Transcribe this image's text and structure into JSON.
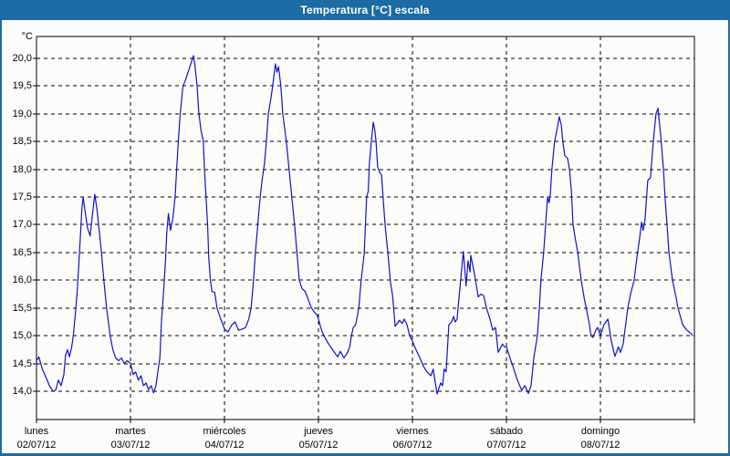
{
  "window": {
    "title": "Temperatura [°C] escala"
  },
  "colors": {
    "titlebar_bg": "#1D6BA4",
    "title_text": "#FFFFFF",
    "window_border": "#1D6BA4",
    "plot_background": "#FCFDFB",
    "plot_border": "#000000",
    "grid": "#000000",
    "line": "#1010CC"
  },
  "chart_data": {
    "type": "line",
    "title": "Temperatura [°C] escala",
    "y_axis": {
      "unit": "°C",
      "tick_labels": [
        "20,0",
        "19,5",
        "19,0",
        "18,5",
        "18,0",
        "17,5",
        "17,0",
        "16,5",
        "16,0",
        "15,5",
        "15,0",
        "14,5",
        "14,0"
      ],
      "tick_values": [
        20.0,
        19.5,
        19.0,
        18.5,
        18.0,
        17.5,
        17.0,
        16.5,
        16.0,
        15.5,
        15.0,
        14.5,
        14.0
      ],
      "visible_range": [
        13.49,
        20.39
      ],
      "grid": "dashed"
    },
    "x_axis": {
      "days": [
        {
          "name": "lunes",
          "date": "02/07/12"
        },
        {
          "name": "martes",
          "date": "03/07/12"
        },
        {
          "name": "miércoles",
          "date": "04/07/12"
        },
        {
          "name": "jueves",
          "date": "05/07/12"
        },
        {
          "name": "viernes",
          "date": "06/07/12"
        },
        {
          "name": "sábado",
          "date": "07/07/12"
        },
        {
          "name": "domingo",
          "date": "08/07/12"
        }
      ],
      "hours_span": 168,
      "grid": "dashed"
    },
    "legend": null,
    "series": [
      {
        "name": "Temperatura",
        "color": "#1010CC",
        "points_hour_temp": [
          [
            0,
            14.55
          ],
          [
            0.6,
            14.62
          ],
          [
            1.5,
            14.4
          ],
          [
            2.3,
            14.27
          ],
          [
            3.3,
            14.1
          ],
          [
            4.2,
            14.0
          ],
          [
            4.9,
            14.02
          ],
          [
            5.6,
            14.2
          ],
          [
            6.3,
            14.1
          ],
          [
            7,
            14.3
          ],
          [
            7.4,
            14.65
          ],
          [
            7.9,
            14.75
          ],
          [
            8.4,
            14.62
          ],
          [
            9,
            14.8
          ],
          [
            9.4,
            15.0
          ],
          [
            10,
            15.45
          ],
          [
            10.4,
            15.8
          ],
          [
            10.8,
            16.3
          ],
          [
            11.2,
            16.8
          ],
          [
            11.6,
            17.3
          ],
          [
            11.9,
            17.5
          ],
          [
            12.4,
            17.25
          ],
          [
            13,
            16.95
          ],
          [
            13.7,
            16.8
          ],
          [
            14.3,
            17.2
          ],
          [
            14.9,
            17.55
          ],
          [
            15.5,
            17.25
          ],
          [
            16,
            16.9
          ],
          [
            16.6,
            16.5
          ],
          [
            17.2,
            16.0
          ],
          [
            17.9,
            15.5
          ],
          [
            18.8,
            15.0
          ],
          [
            19.5,
            14.75
          ],
          [
            20.2,
            14.6
          ],
          [
            21,
            14.55
          ],
          [
            21.7,
            14.6
          ],
          [
            22.4,
            14.5
          ],
          [
            23.2,
            14.55
          ],
          [
            24,
            14.5
          ],
          [
            24.7,
            14.3
          ],
          [
            25.3,
            14.35
          ],
          [
            26,
            14.2
          ],
          [
            26.7,
            14.28
          ],
          [
            27.3,
            14.1
          ],
          [
            28,
            14.15
          ],
          [
            28.6,
            14.03
          ],
          [
            29.3,
            14.1
          ],
          [
            29.9,
            13.97
          ],
          [
            30.5,
            14.1
          ],
          [
            31,
            14.35
          ],
          [
            31.5,
            14.6
          ],
          [
            31.9,
            15.25
          ],
          [
            32.4,
            15.75
          ],
          [
            32.9,
            16.3
          ],
          [
            33.3,
            16.9
          ],
          [
            33.7,
            17.2
          ],
          [
            34.2,
            16.9
          ],
          [
            34.8,
            17.1
          ],
          [
            35.4,
            17.5
          ],
          [
            35.8,
            18.0
          ],
          [
            36.2,
            18.5
          ],
          [
            36.7,
            19.0
          ],
          [
            37.4,
            19.5
          ],
          [
            38,
            19.6
          ],
          [
            38.7,
            19.75
          ],
          [
            39.4,
            19.9
          ],
          [
            40.1,
            20.05
          ],
          [
            40.5,
            19.85
          ],
          [
            41,
            19.5
          ],
          [
            41.4,
            19.05
          ],
          [
            42,
            18.7
          ],
          [
            42.6,
            18.5
          ],
          [
            42.9,
            18.0
          ],
          [
            43.3,
            17.5
          ],
          [
            43.7,
            17.0
          ],
          [
            44,
            16.4
          ],
          [
            44.4,
            16.0
          ],
          [
            44.8,
            15.8
          ],
          [
            45.5,
            15.78
          ],
          [
            46.1,
            15.5
          ],
          [
            46.9,
            15.33
          ],
          [
            47.6,
            15.2
          ],
          [
            48,
            15.12
          ],
          [
            48.9,
            15.07
          ],
          [
            49.9,
            15.2
          ],
          [
            50.7,
            15.25
          ],
          [
            51.6,
            15.1
          ],
          [
            52.5,
            15.12
          ],
          [
            53.4,
            15.15
          ],
          [
            54.2,
            15.3
          ],
          [
            54.8,
            15.5
          ],
          [
            55.4,
            16.0
          ],
          [
            55.9,
            16.5
          ],
          [
            56.5,
            17.0
          ],
          [
            57.1,
            17.5
          ],
          [
            57.7,
            17.85
          ],
          [
            58.2,
            18.1
          ],
          [
            58.7,
            18.5
          ],
          [
            59.2,
            19.0
          ],
          [
            59.9,
            19.3
          ],
          [
            60.3,
            19.5
          ],
          [
            61,
            19.9
          ],
          [
            61.4,
            19.75
          ],
          [
            61.8,
            19.85
          ],
          [
            62.4,
            19.5
          ],
          [
            62.9,
            19.0
          ],
          [
            63.8,
            18.5
          ],
          [
            64.5,
            18.0
          ],
          [
            65.2,
            17.5
          ],
          [
            65.9,
            17.0
          ],
          [
            66.5,
            16.5
          ],
          [
            67.1,
            16.0
          ],
          [
            67.8,
            15.85
          ],
          [
            68.6,
            15.8
          ],
          [
            69.4,
            15.65
          ],
          [
            70.2,
            15.5
          ],
          [
            71,
            15.42
          ],
          [
            71.6,
            15.38
          ],
          [
            72,
            15.3
          ],
          [
            72.8,
            15.1
          ],
          [
            73.4,
            15.0
          ],
          [
            74.6,
            14.85
          ],
          [
            75.8,
            14.73
          ],
          [
            76.9,
            14.62
          ],
          [
            77.6,
            14.72
          ],
          [
            78.5,
            14.6
          ],
          [
            79.3,
            14.68
          ],
          [
            80,
            14.8
          ],
          [
            80.4,
            15.0
          ],
          [
            80.9,
            15.15
          ],
          [
            81.5,
            15.2
          ],
          [
            82.3,
            15.5
          ],
          [
            82.9,
            16.0
          ],
          [
            83.4,
            16.3
          ],
          [
            83.7,
            16.5
          ],
          [
            84,
            17.0
          ],
          [
            84.3,
            17.5
          ],
          [
            84.7,
            17.6
          ],
          [
            85,
            18.1
          ],
          [
            85.5,
            18.5
          ],
          [
            86,
            18.85
          ],
          [
            86.4,
            18.7
          ],
          [
            86.7,
            18.5
          ],
          [
            87.1,
            18.05
          ],
          [
            87.6,
            17.95
          ],
          [
            88.1,
            17.9
          ],
          [
            88.5,
            17.5
          ],
          [
            89,
            17.0
          ],
          [
            89.7,
            16.5
          ],
          [
            90.4,
            15.95
          ],
          [
            90.9,
            15.74
          ],
          [
            91.6,
            15.17
          ],
          [
            92.7,
            15.28
          ],
          [
            93.4,
            15.22
          ],
          [
            93.9,
            15.3
          ],
          [
            94.6,
            15.2
          ],
          [
            95.3,
            15.0
          ],
          [
            96,
            14.9
          ],
          [
            96.9,
            14.75
          ],
          [
            97.9,
            14.6
          ],
          [
            98.8,
            14.45
          ],
          [
            99.7,
            14.35
          ],
          [
            100.7,
            14.28
          ],
          [
            101.3,
            14.4
          ],
          [
            102.3,
            13.95
          ],
          [
            103.2,
            14.15
          ],
          [
            103.7,
            14.1
          ],
          [
            104.1,
            14.4
          ],
          [
            104.6,
            14.35
          ],
          [
            105.3,
            15.2
          ],
          [
            106,
            15.25
          ],
          [
            106.5,
            15.35
          ],
          [
            106.9,
            15.25
          ],
          [
            107.4,
            15.3
          ],
          [
            108.3,
            16.0
          ],
          [
            109,
            16.52
          ],
          [
            109.7,
            15.9
          ],
          [
            110.2,
            16.35
          ],
          [
            110.7,
            16.15
          ],
          [
            110.9,
            16.45
          ],
          [
            111.6,
            16.2
          ],
          [
            112.1,
            16.0
          ],
          [
            112.8,
            15.7
          ],
          [
            113.5,
            15.75
          ],
          [
            114.2,
            15.72
          ],
          [
            114.9,
            15.5
          ],
          [
            115.8,
            15.3
          ],
          [
            116.5,
            15.1
          ],
          [
            117.2,
            15.15
          ],
          [
            117.9,
            14.7
          ],
          [
            119,
            14.85
          ],
          [
            119.5,
            14.8
          ],
          [
            120,
            14.8
          ],
          [
            120.9,
            14.6
          ],
          [
            121.8,
            14.42
          ],
          [
            122.8,
            14.2
          ],
          [
            123.9,
            14.02
          ],
          [
            124.7,
            14.1
          ],
          [
            125.6,
            13.96
          ],
          [
            126.3,
            14.1
          ],
          [
            127,
            14.6
          ],
          [
            127.9,
            15.0
          ],
          [
            128.4,
            15.5
          ],
          [
            128.8,
            16.0
          ],
          [
            129.5,
            16.5
          ],
          [
            130,
            17.0
          ],
          [
            130.5,
            17.5
          ],
          [
            130.9,
            17.4
          ],
          [
            131.2,
            17.55
          ],
          [
            131.6,
            18.0
          ],
          [
            132.3,
            18.5
          ],
          [
            133,
            18.75
          ],
          [
            133.5,
            18.95
          ],
          [
            134,
            18.8
          ],
          [
            134.4,
            18.5
          ],
          [
            134.9,
            18.25
          ],
          [
            135.6,
            18.2
          ],
          [
            136.1,
            18.0
          ],
          [
            136.6,
            17.6
          ],
          [
            137,
            17.0
          ],
          [
            137.7,
            16.7
          ],
          [
            138.2,
            16.5
          ],
          [
            139.1,
            16.0
          ],
          [
            139.8,
            15.7
          ],
          [
            140.5,
            15.45
          ],
          [
            141.2,
            15.2
          ],
          [
            141.6,
            15.0
          ],
          [
            142.1,
            14.97
          ],
          [
            142.8,
            15.1
          ],
          [
            143.3,
            15.15
          ],
          [
            144,
            15.0
          ],
          [
            144.9,
            15.2
          ],
          [
            145.9,
            15.3
          ],
          [
            146.8,
            14.9
          ],
          [
            147.7,
            14.63
          ],
          [
            148.6,
            14.8
          ],
          [
            149.1,
            14.7
          ],
          [
            149.8,
            14.85
          ],
          [
            151,
            15.5
          ],
          [
            151.7,
            15.75
          ],
          [
            152.6,
            16.0
          ],
          [
            153.3,
            16.4
          ],
          [
            154,
            16.75
          ],
          [
            154.5,
            17.05
          ],
          [
            154.9,
            16.9
          ],
          [
            155.4,
            17.1
          ],
          [
            156.1,
            17.8
          ],
          [
            156.8,
            17.85
          ],
          [
            157.5,
            18.5
          ],
          [
            158.2,
            19.0
          ],
          [
            158.7,
            19.1
          ],
          [
            159.4,
            18.6
          ],
          [
            160.1,
            18.0
          ],
          [
            160.5,
            17.5
          ],
          [
            161,
            17.0
          ],
          [
            161.5,
            16.5
          ],
          [
            162.4,
            16.0
          ],
          [
            163.3,
            15.7
          ],
          [
            163.8,
            15.5
          ],
          [
            165,
            15.2
          ],
          [
            166.1,
            15.1
          ],
          [
            167,
            15.05
          ],
          [
            167.5,
            15.0
          ]
        ]
      }
    ]
  }
}
